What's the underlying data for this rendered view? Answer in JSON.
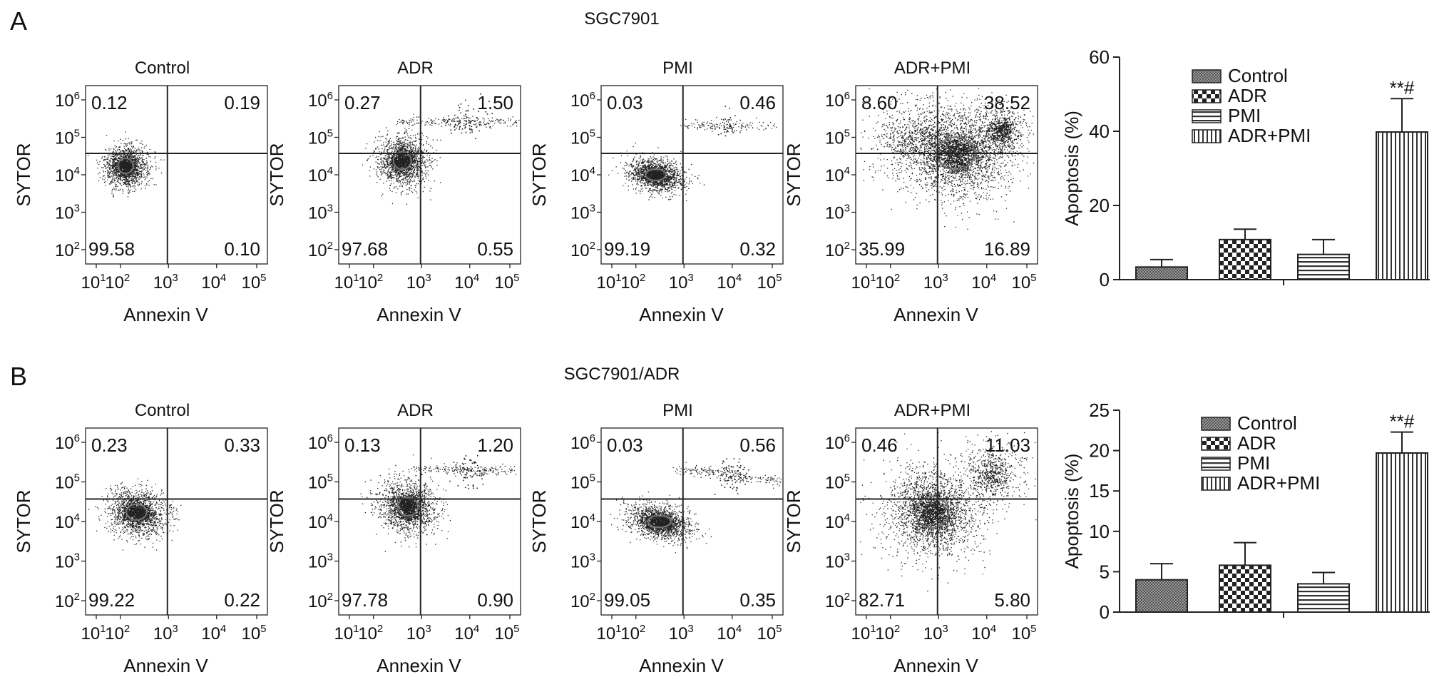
{
  "panels": [
    {
      "letter": "A",
      "title": "SGC7901",
      "flow": [
        {
          "title": "Control",
          "quadrants": {
            "ul": "0.12",
            "ur": "0.19",
            "ll": "99.58",
            "lr": "0.10"
          }
        },
        {
          "title": "ADR",
          "quadrants": {
            "ul": "0.27",
            "ur": "1.50",
            "ll": "97.68",
            "lr": "0.55"
          }
        },
        {
          "title": "PMI",
          "quadrants": {
            "ul": "0.03",
            "ur": "0.46",
            "ll": "99.19",
            "lr": "0.32"
          }
        },
        {
          "title": "ADR+PMI",
          "quadrants": {
            "ul": "8.60",
            "ur": "38.52",
            "ll": "35.99",
            "lr": "16.89"
          }
        }
      ],
      "bar": {
        "ylabel": "Apoptosis (%)",
        "ymax": 60,
        "yticks": [
          0,
          20,
          40,
          60
        ],
        "annotation": "**#"
      }
    },
    {
      "letter": "B",
      "title": "SGC7901/ADR",
      "flow": [
        {
          "title": "Control",
          "quadrants": {
            "ul": "0.23",
            "ur": "0.33",
            "ll": "99.22",
            "lr": "0.22"
          }
        },
        {
          "title": "ADR",
          "quadrants": {
            "ul": "0.13",
            "ur": "1.20",
            "ll": "97.78",
            "lr": "0.90"
          }
        },
        {
          "title": "PMI",
          "quadrants": {
            "ul": "0.03",
            "ur": "0.56",
            "ll": "99.05",
            "lr": "0.35"
          }
        },
        {
          "title": "ADR+PMI",
          "quadrants": {
            "ul": "0.46",
            "ur": "11.03",
            "ll": "82.71",
            "lr": "5.80"
          }
        }
      ],
      "bar": {
        "ylabel": "Apoptosis (%)",
        "ymax": 25,
        "yticks": [
          0,
          5,
          10,
          15,
          20,
          25
        ],
        "annotation": "**#"
      }
    }
  ],
  "flow_axes": {
    "xlabel": "Annexin V",
    "ylabel": "SYTOR",
    "x_ticks": [
      {
        "base": "10",
        "exp": "1"
      },
      {
        "base": "10",
        "exp": "2"
      },
      {
        "base": "10",
        "exp": "3"
      },
      {
        "base": "10",
        "exp": "4"
      },
      {
        "base": "10",
        "exp": "5"
      }
    ],
    "y_ticks": [
      {
        "base": "10",
        "exp": "2"
      },
      {
        "base": "10",
        "exp": "3"
      },
      {
        "base": "10",
        "exp": "4"
      },
      {
        "base": "10",
        "exp": "5"
      },
      {
        "base": "10",
        "exp": "6"
      }
    ]
  },
  "legend": [
    "Control",
    "ADR",
    "PMI",
    "ADR+PMI"
  ],
  "chart_data": [
    {
      "type": "bar",
      "panel": "A",
      "title": "SGC7901",
      "categories": [
        "Control",
        "ADR",
        "PMI",
        "ADR+PMI"
      ],
      "values": [
        3.4,
        10.8,
        6.8,
        39.8
      ],
      "errors": [
        2.0,
        2.8,
        4.0,
        9.0
      ],
      "xlabel": "",
      "ylabel": "Apoptosis (%)",
      "ylim": [
        0,
        60
      ],
      "legend": "top-right",
      "annotation": {
        "category": "ADR+PMI",
        "text": "**#"
      }
    },
    {
      "type": "bar",
      "panel": "B",
      "title": "SGC7901/ADR",
      "categories": [
        "Control",
        "ADR",
        "PMI",
        "ADR+PMI"
      ],
      "values": [
        4.0,
        5.8,
        3.5,
        19.7
      ],
      "errors": [
        2.0,
        2.8,
        1.4,
        2.6
      ],
      "xlabel": "",
      "ylabel": "Apoptosis (%)",
      "ylim": [
        0,
        25
      ],
      "legend": "top-right",
      "annotation": {
        "category": "ADR+PMI",
        "text": "**#"
      }
    }
  ]
}
